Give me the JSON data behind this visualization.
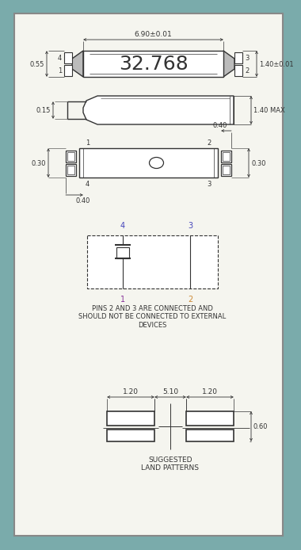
{
  "bg_outer": "#7aabab",
  "bg_inner": "#f5f5ef",
  "line_color": "#333333",
  "pin_color_blue": "#4444bb",
  "pin_color_purple": "#883399",
  "pin_color_orange": "#cc8833",
  "title": "32.768",
  "dim_top_width": "6.90±0.01",
  "dim_height": "1.40±0.01",
  "dim_side_height_max": "1.40 MAX",
  "dim_left_a": "0.55",
  "dim_left_b": "0.15",
  "dim_bottom_x": "0.40",
  "dim_bottom_y": "0.30",
  "dim_bottom_left": "0.40",
  "dim_land_left": "1.20",
  "dim_land_mid": "5.10",
  "dim_land_right": "1.20",
  "dim_land_height": "0.60",
  "note_text": "PINS 2 AND 3 ARE CONNECTED AND\nSHOULD NOT BE CONNECTED TO EXTERNAL\nDEVICES",
  "suggested_text": "SUGGESTED\nLAND PATTERNS"
}
